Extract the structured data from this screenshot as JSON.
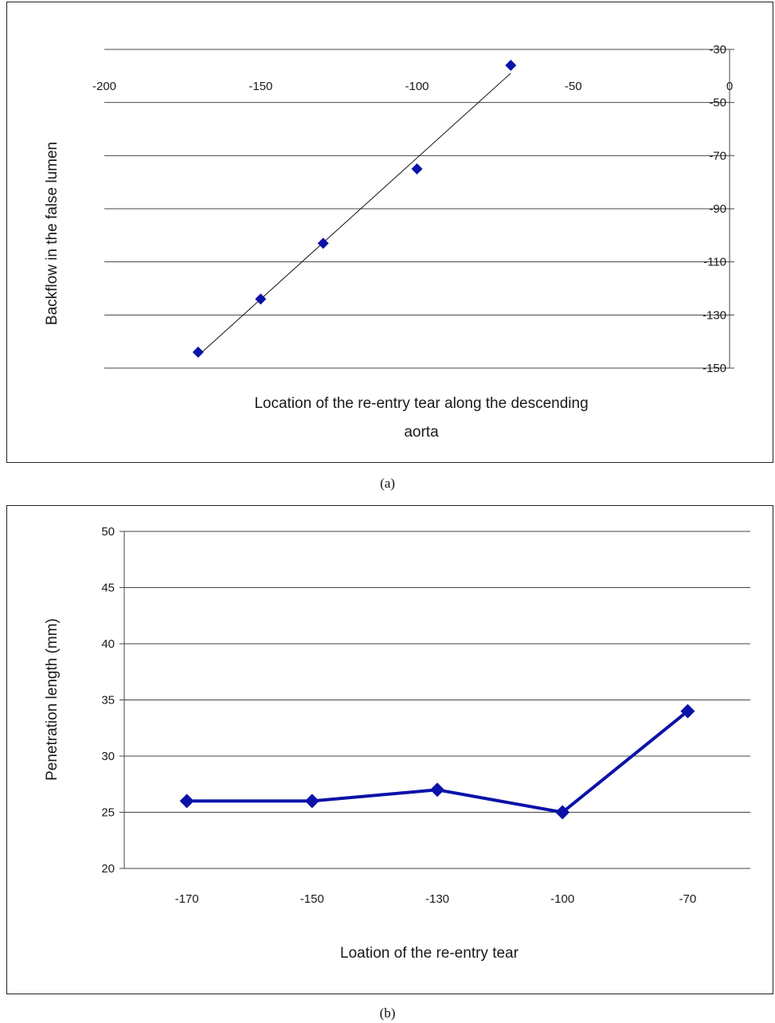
{
  "chart_data": [
    {
      "type": "scatter",
      "panel_caption": "(a)",
      "xlabel_lines": [
        "Location of the re-entry tear along the descending",
        "aorta"
      ],
      "ylabel": "Backflow in the false lumen",
      "xlim": [
        -200,
        0
      ],
      "ylim": [
        -150,
        -30
      ],
      "x_ticks": [
        "-200",
        "-150",
        "-100",
        "-50",
        "0"
      ],
      "y_ticks": [
        "-30",
        "-50",
        "-70",
        "-90",
        "-110",
        "-130",
        "-150"
      ],
      "x_axis_position": "top",
      "y_axis_position": "right",
      "grid": "horizontal",
      "legend": "none",
      "marker_color": "#0b12a8",
      "trendline": true,
      "series": [
        {
          "x": [
            -170,
            -150,
            -130,
            -100,
            -70
          ],
          "y": [
            -144,
            -124,
            -103,
            -75,
            -36
          ]
        }
      ],
      "trendline_range": [
        -170,
        -70
      ]
    },
    {
      "type": "line",
      "panel_caption": "(b)",
      "xlabel": "Loation of the re-entry tear",
      "ylabel": "Penetration length (mm)",
      "categories": [
        "-170",
        "-150",
        "-130",
        "-100",
        "-70"
      ],
      "ylim": [
        20,
        50
      ],
      "y_ticks": [
        "20",
        "25",
        "30",
        "35",
        "40",
        "45",
        "50"
      ],
      "grid": "horizontal",
      "legend": "none",
      "line_color": "#0b12a8",
      "series": [
        {
          "values": [
            26,
            26,
            27,
            25,
            34
          ]
        }
      ]
    }
  ]
}
